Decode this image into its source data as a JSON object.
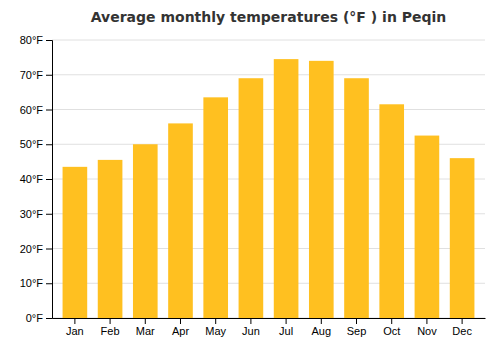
{
  "chart_data": {
    "type": "bar",
    "title": "Average monthly temperatures (°F ) in Peqin",
    "categories": [
      "Jan",
      "Feb",
      "Mar",
      "Apr",
      "May",
      "Jun",
      "Jul",
      "Aug",
      "Sep",
      "Oct",
      "Nov",
      "Dec"
    ],
    "values": [
      43.5,
      45.5,
      50.0,
      56.0,
      63.5,
      69.0,
      74.5,
      74.0,
      69.0,
      61.5,
      52.5,
      46.0
    ],
    "color": "#FFC020",
    "ylim": [
      0,
      80
    ],
    "yticks": [
      {
        "value": 0,
        "label": "0°F"
      },
      {
        "value": 10,
        "label": "10°F"
      },
      {
        "value": 20,
        "label": "20°F"
      },
      {
        "value": 30,
        "label": "30°F"
      },
      {
        "value": 40,
        "label": "40°F"
      },
      {
        "value": 50,
        "label": "50°F"
      },
      {
        "value": 60,
        "label": "60°F"
      },
      {
        "value": 70,
        "label": "70°F"
      },
      {
        "value": 80,
        "label": "80°F"
      }
    ],
    "grid": true
  }
}
